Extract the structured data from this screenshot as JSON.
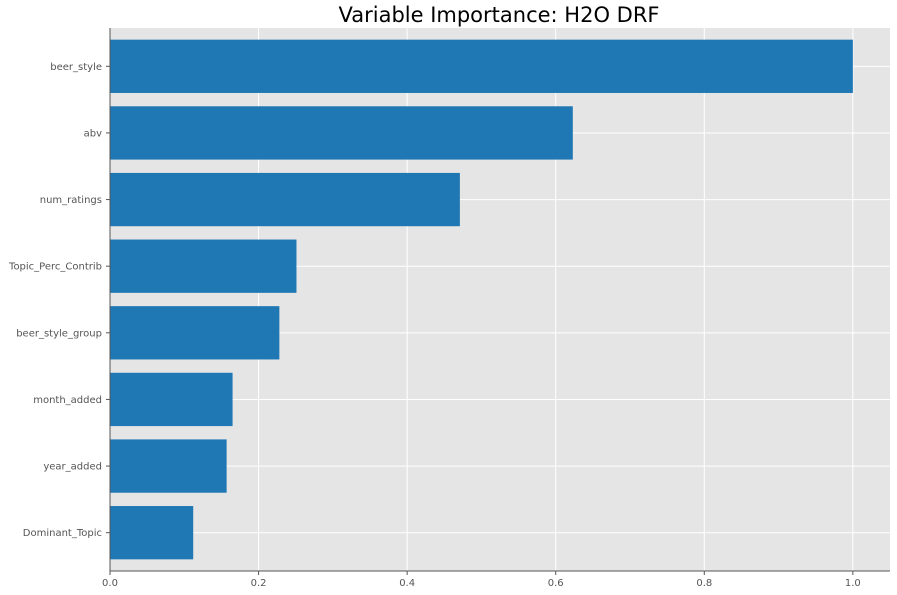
{
  "chart_data": {
    "type": "bar",
    "orientation": "horizontal",
    "title": "Variable Importance: H2O DRF",
    "xlabel": "",
    "ylabel": "",
    "categories": [
      "beer_style",
      "abv",
      "num_ratings",
      "Topic_Perc_Contrib",
      "beer_style_group",
      "month_added",
      "year_added",
      "Dominant_Topic"
    ],
    "values": [
      1.0,
      0.623,
      0.471,
      0.251,
      0.228,
      0.165,
      0.157,
      0.112
    ],
    "xlim": [
      0,
      1.05
    ],
    "xticks": [
      "0.0",
      "0.2",
      "0.4",
      "0.6",
      "0.8",
      "1.0"
    ],
    "xtick_values": [
      0,
      0.2,
      0.4,
      0.6,
      0.8,
      1.0
    ],
    "grid": true,
    "colors": {
      "bar": "#1f77b4",
      "background": "#e5e5e5",
      "grid": "#ffffff",
      "axis": "#555555"
    }
  }
}
